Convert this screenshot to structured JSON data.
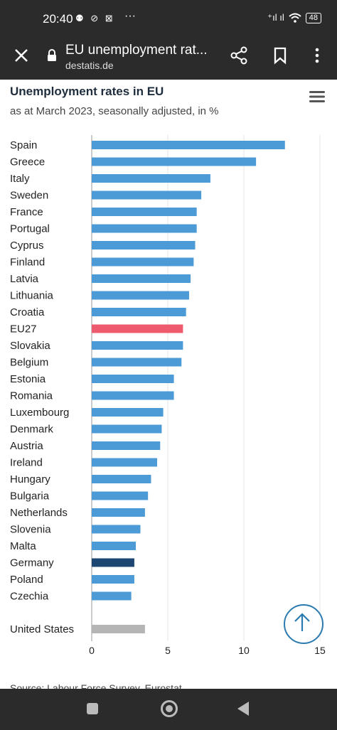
{
  "status_bar": {
    "time": "20:40",
    "left_icons": "⚉ ⊘ ⊠",
    "more": "···",
    "network": "⁺ıl ıl",
    "battery": "48"
  },
  "browser": {
    "title": "EU unemployment rat...",
    "domain": "destatis.de",
    "icons": [
      "close-icon",
      "lock-icon",
      "share-icon",
      "bookmark-icon",
      "more-vert-icon"
    ]
  },
  "chart_menu_icon": "hamburger-icon",
  "chart_data": {
    "type": "bar",
    "orientation": "horizontal",
    "title": "Unemployment rates in EU",
    "subtitle": "as at March 2023, seasonally adjusted, in %",
    "categories": [
      "Spain",
      "Greece",
      "Italy",
      "Sweden",
      "France",
      "Portugal",
      "Cyprus",
      "Finland",
      "Latvia",
      "Lithuania",
      "Croatia",
      "EU27",
      "Slovakia",
      "Belgium",
      "Estonia",
      "Romania",
      "Luxembourg",
      "Denmark",
      "Austria",
      "Ireland",
      "Hungary",
      "Bulgaria",
      "Netherlands",
      "Slovenia",
      "Malta",
      "Germany",
      "Poland",
      "Czechia",
      "United States"
    ],
    "values": [
      12.7,
      10.8,
      7.8,
      7.2,
      6.9,
      6.9,
      6.8,
      6.7,
      6.5,
      6.4,
      6.2,
      6.0,
      6.0,
      5.9,
      5.4,
      5.4,
      4.7,
      4.6,
      4.5,
      4.3,
      3.9,
      3.7,
      3.5,
      3.2,
      2.9,
      2.8,
      2.8,
      2.6,
      3.5
    ],
    "colors": {
      "default": "#4c9bd7",
      "EU27": "#ef5b6e",
      "Germany": "#1d4673",
      "United States": "#b5b5b5"
    },
    "xlim": [
      0,
      15
    ],
    "xticks": [
      0,
      5,
      10,
      15
    ],
    "grid": true
  },
  "source": "Source: Labour Force Survey, Eurostat",
  "scroll_top_icon": "arrow-up-icon",
  "nav": {
    "icons": [
      "recent-apps-icon",
      "home-icon",
      "back-icon"
    ]
  }
}
